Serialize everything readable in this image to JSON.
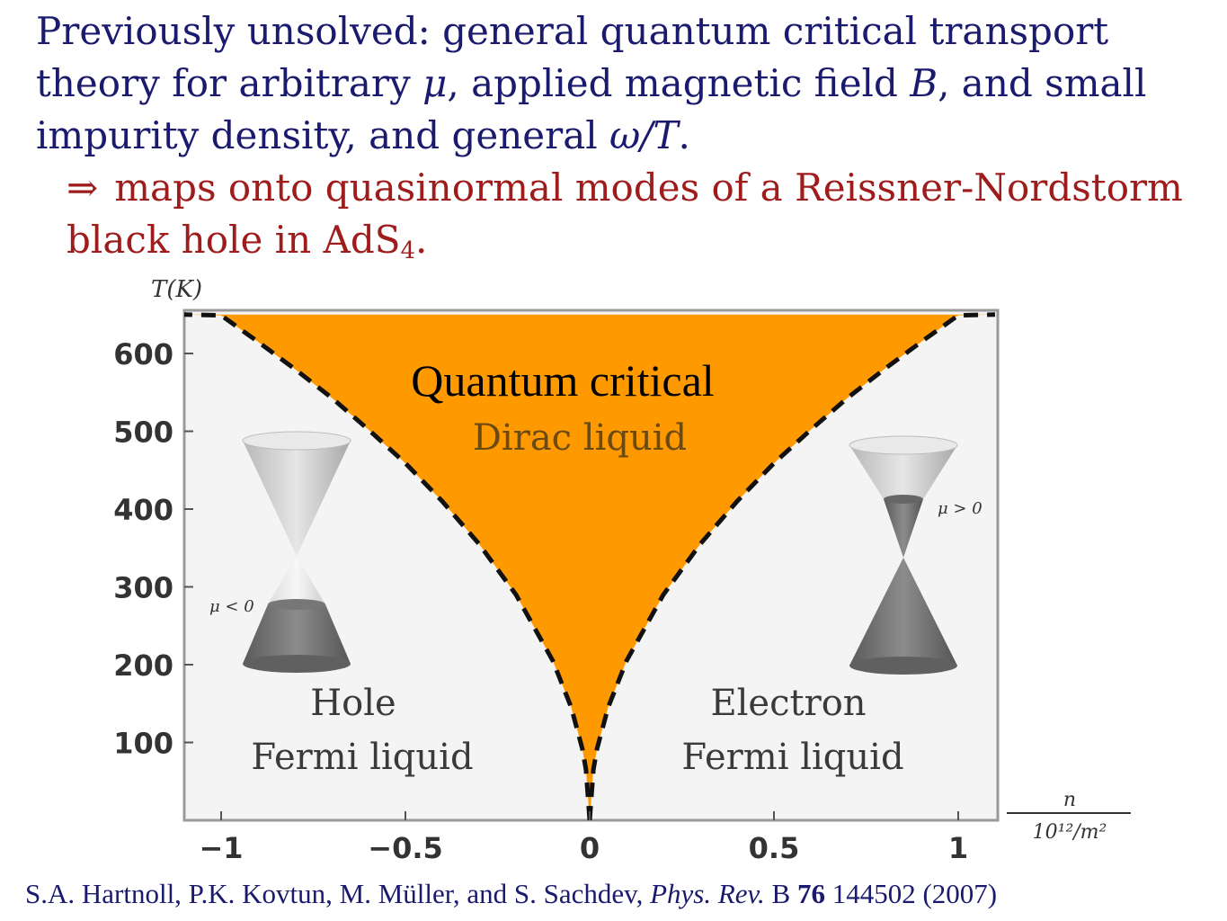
{
  "heading": {
    "line1": "Previously unsolved:  general quantum critical transport",
    "line2_a": "theory for arbitrary ",
    "mu": "μ",
    "line2_b": ", applied magnetic field ",
    "B": "B",
    "line2_c": ", and small",
    "line3_a": "impurity density, and general ",
    "omega_T": "ω/T",
    "line3_b": ".",
    "arrow": "⇒",
    "red_line1": "maps onto quasinormal modes of a Reissner-Nordstorm",
    "red_line2_a": "black hole in AdS",
    "red_line2_sub": "4",
    "red_line2_b": "."
  },
  "chart_data": {
    "type": "area",
    "ylabel": "T(K)",
    "xlabel_num": "n",
    "xlabel_den": "10¹²/m²",
    "xlim": [
      -1.1,
      1.1
    ],
    "ylim": [
      0,
      650
    ],
    "xticks": [
      -1,
      -0.5,
      0,
      0.5,
      1
    ],
    "xtick_labels": [
      "−1",
      "−0.5",
      "0",
      "0.5",
      "1"
    ],
    "yticks": [
      100,
      200,
      300,
      400,
      500,
      600
    ],
    "ytick_labels": [
      "100",
      "200",
      "300",
      "400",
      "500",
      "600"
    ],
    "crossover_boundary": {
      "abs_x": [
        0,
        0.01,
        0.02,
        0.05,
        0.1,
        0.2,
        0.3,
        0.4,
        0.5,
        0.6,
        0.7,
        0.8,
        0.9,
        1.0,
        1.1
      ],
      "T": [
        0,
        65,
        92,
        145,
        205,
        290,
        355,
        410,
        459,
        502,
        543,
        580,
        615,
        649,
        650
      ]
    },
    "fill_color": "#FF9900",
    "regions": {
      "qc_label": "Quantum critical",
      "dirac_label": "Dirac liquid",
      "hole_line1": "Hole",
      "hole_line2": "Fermi liquid",
      "electron_line1": "Electron",
      "electron_line2": "Fermi liquid"
    },
    "cone_labels": {
      "left": "μ < 0",
      "right": "μ > 0"
    },
    "grid": false
  },
  "citation": {
    "authors": "S.A. Hartnoll, P.K. Kovtun, M. Müller, and S. Sachdev, ",
    "journal": "Phys. Rev.",
    "series": " B ",
    "volume": "76",
    "rest": " 144502 (2007)"
  }
}
